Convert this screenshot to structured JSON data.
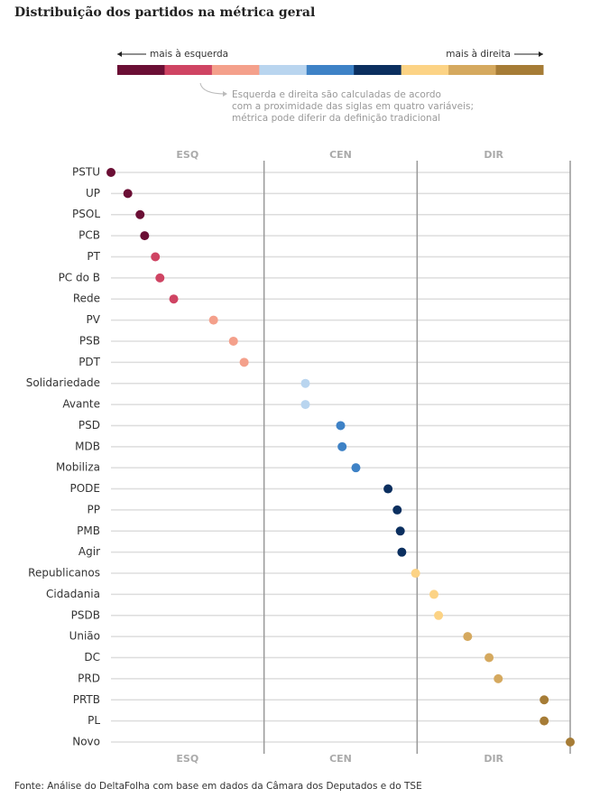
{
  "chart_data": {
    "type": "dot",
    "title": "Distribuição dos partidos na métrica geral",
    "legend": {
      "left_label": "mais à esquerda",
      "right_label": "mais à direita",
      "colors": [
        "#6b0f35",
        "#cf4463",
        "#f4a08b",
        "#b9d5ef",
        "#3e82c6",
        "#0b2f5f",
        "#fcd385",
        "#d5a95f",
        "#a67c36"
      ]
    },
    "note": [
      "Esquerda e direita são calculadas de acordo",
      "com a proximidade das siglas em quatro variáveis;",
      "métrica pode diferir da definição tradicional"
    ],
    "zones": [
      "ESQ",
      "CEN",
      "DIR"
    ],
    "categories": [
      "PSTU",
      "UP",
      "PSOL",
      "PCB",
      "PT",
      "PC do B",
      "Rede",
      "PV",
      "PSB",
      "PDT",
      "Solidariedade",
      "Avante",
      "PSD",
      "MDB",
      "Mobiliza",
      "PODE",
      "PP",
      "PMB",
      "Agir",
      "Republicanos",
      "Cidadania",
      "PSDB",
      "União",
      "DC",
      "PRD",
      "PRTB",
      "PL",
      "Novo"
    ],
    "values": [
      0,
      0.11,
      0.19,
      0.22,
      0.29,
      0.32,
      0.41,
      0.67,
      0.8,
      0.87,
      1.27,
      1.27,
      1.5,
      1.51,
      1.6,
      1.81,
      1.87,
      1.89,
      1.9,
      1.99,
      2.11,
      2.14,
      2.33,
      2.47,
      2.53,
      2.83,
      2.83,
      3
    ],
    "colors": [
      "#6b0f35",
      "#6b0f35",
      "#6b0f35",
      "#6b0f35",
      "#cf4463",
      "#cf4463",
      "#cf4463",
      "#f4a08b",
      "#f4a08b",
      "#f4a08b",
      "#b9d5ef",
      "#b9d5ef",
      "#3e82c6",
      "#3e82c6",
      "#3e82c6",
      "#0b2f5f",
      "#0b2f5f",
      "#0b2f5f",
      "#0b2f5f",
      "#fcd385",
      "#fcd385",
      "#fcd385",
      "#d5a95f",
      "#d5a95f",
      "#d5a95f",
      "#a67c36",
      "#a67c36",
      "#a67c36"
    ],
    "xlim": [
      0,
      3
    ],
    "xticks": [
      1,
      2,
      3
    ],
    "source": "Fonte: Análise do DeltaFolha com base em dados da Câmara dos Deputados e do TSE"
  }
}
